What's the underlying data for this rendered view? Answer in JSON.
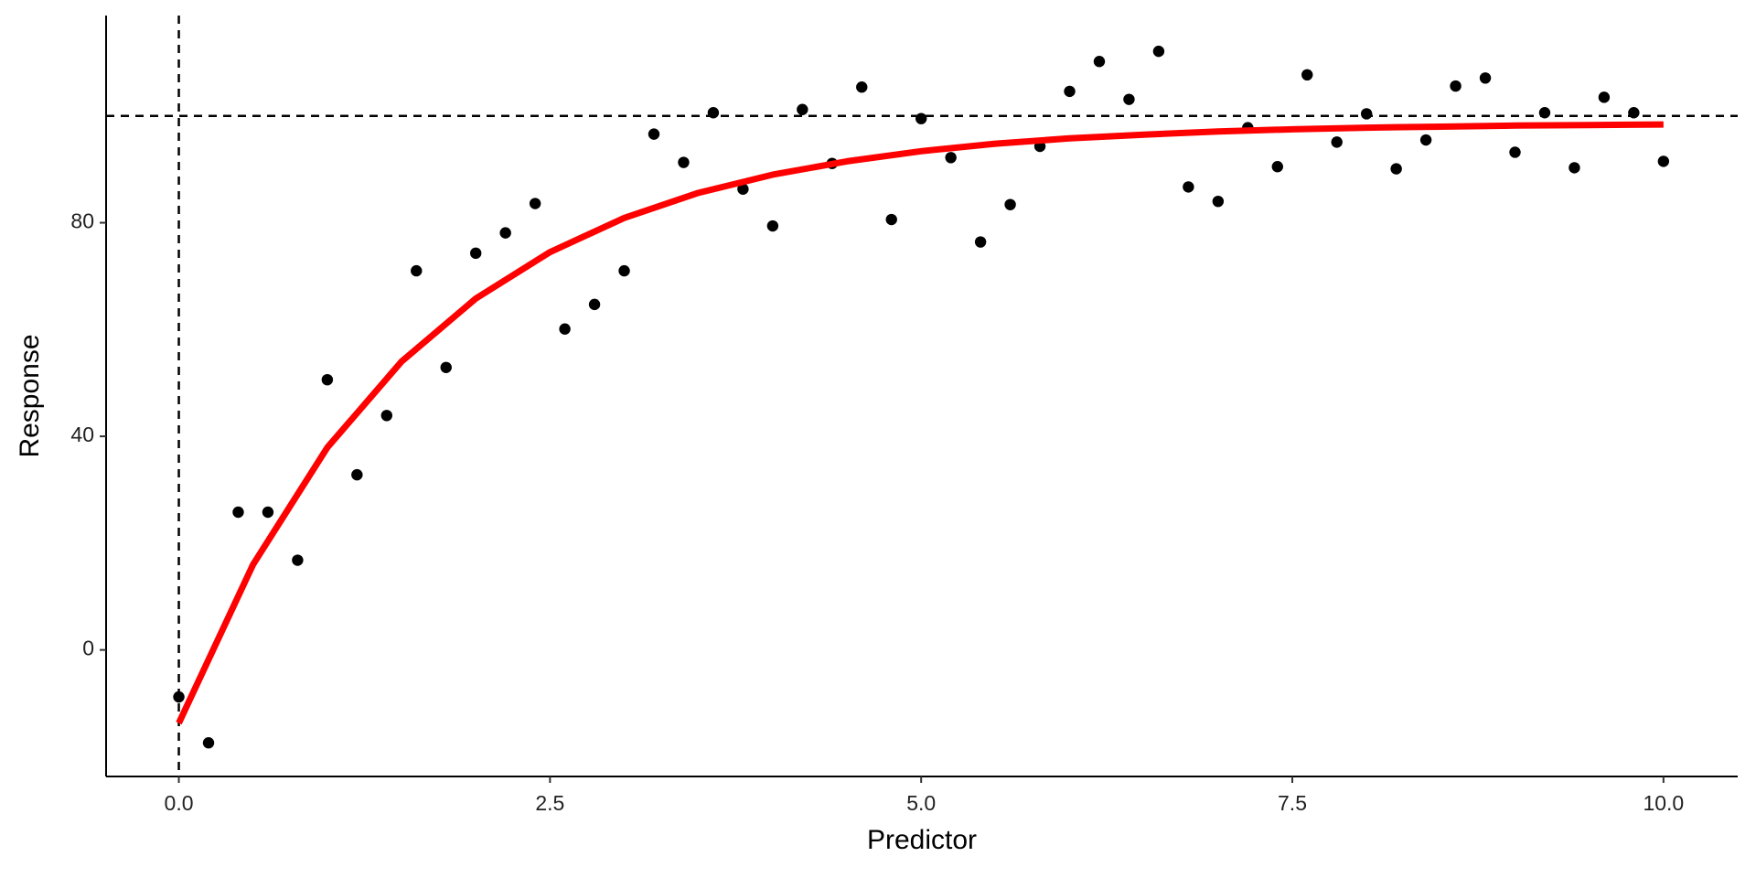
{
  "chart_data": {
    "type": "scatter",
    "xlabel": "Predictor",
    "ylabel": "Response",
    "x": [
      0,
      0.2,
      0.4,
      0.6,
      0.8,
      1.0,
      1.2,
      1.4,
      1.6,
      1.8,
      2.0,
      2.2,
      2.4,
      2.6,
      2.8,
      3.0,
      3.2,
      3.4,
      3.6,
      3.8,
      4.0,
      4.2,
      4.4,
      4.6,
      4.8,
      5.0,
      5.2,
      5.4,
      5.6,
      5.8,
      6.0,
      6.2,
      6.4,
      6.6,
      6.8,
      7.0,
      7.2,
      7.4,
      7.6,
      7.8,
      8.0,
      8.2,
      8.4,
      8.6,
      8.8,
      9.0,
      9.2,
      9.4,
      9.6,
      9.8,
      10.0
    ],
    "values": [
      -8.8,
      -17.4,
      25.8,
      25.8,
      16.8,
      50.6,
      32.8,
      43.9,
      71.0,
      52.9,
      74.3,
      78.1,
      83.6,
      60.1,
      64.7,
      71.0,
      96.6,
      91.3,
      100.6,
      86.3,
      79.4,
      101.2,
      91.1,
      105.4,
      80.6,
      99.5,
      92.2,
      76.4,
      83.4,
      94.3,
      104.6,
      110.2,
      103.1,
      112.1,
      86.7,
      84.0,
      97.8,
      90.5,
      107.7,
      95.1,
      100.4,
      90.1,
      95.5,
      105.6,
      107.1,
      93.2,
      100.6,
      90.3,
      103.5,
      100.6,
      91.5
    ],
    "color": "#000000",
    "fit": {
      "type": "line",
      "x": [
        0,
        0.5,
        1,
        1.5,
        2,
        2.5,
        3,
        3.5,
        4,
        4.5,
        5,
        5.5,
        6,
        6.5,
        7,
        7.5,
        8,
        8.5,
        9,
        9.5,
        10
      ],
      "values": [
        -13.7,
        16.0,
        37.9,
        54.0,
        65.8,
        74.5,
        80.9,
        85.6,
        89.0,
        91.5,
        93.4,
        94.8,
        95.8,
        96.5,
        97.1,
        97.5,
        97.8,
        98.0,
        98.2,
        98.3,
        98.4
      ],
      "color": "#ff0000"
    },
    "hlines": [
      100
    ],
    "vlines": [
      0
    ],
    "xlim": [
      -0.49,
      10.5
    ],
    "ylim": [
      -23.7,
      118.8
    ],
    "xticks": [
      {
        "value": 0,
        "label": "0.0"
      },
      2.5,
      {
        "value": 5,
        "label": "5.0"
      },
      7.5,
      {
        "value": 10,
        "label": "10.0"
      }
    ],
    "yticks": [
      0,
      40,
      80
    ],
    "grid": false
  }
}
